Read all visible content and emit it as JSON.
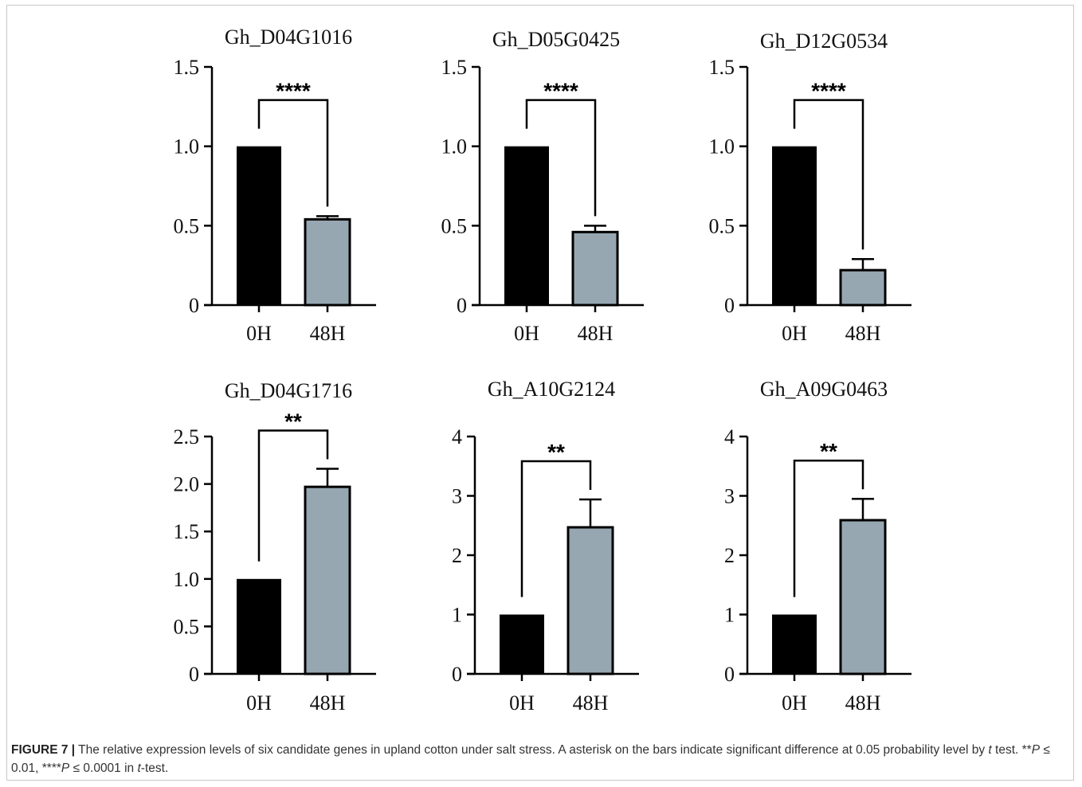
{
  "figure_label": "FIGURE 7 |",
  "caption_text": "The relative expression levels of six candidate genes in upland cotton under salt stress. A asterisk on the bars indicate significant difference at 0.05 probability level by",
  "caption_t": "t",
  "caption_after_t": "test. **",
  "caption_p1": "P",
  "caption_p1_tail": "≤ 0.01, ****",
  "caption_p2": "P",
  "caption_p2_tail": "≤ 0.0001 in",
  "caption_t2": "t",
  "caption_end": "-test.",
  "colors": {
    "bar_0h": "#000000",
    "bar_48h": "#97a7b1",
    "axis": "#000000"
  },
  "chart_data": [
    {
      "type": "bar",
      "title": "Gh_D04G1016",
      "categories": [
        "0H",
        "48H"
      ],
      "values": [
        1.0,
        0.54
      ],
      "error": [
        0,
        0.02
      ],
      "ylim": [
        0,
        1.5
      ],
      "yticks": [
        0,
        0.5,
        1.0,
        1.5
      ],
      "ytick_labels": [
        "0",
        "0.5",
        "1.0",
        "1.5"
      ],
      "significance": "****"
    },
    {
      "type": "bar",
      "title": "Gh_D05G0425",
      "categories": [
        "0H",
        "48H"
      ],
      "values": [
        1.0,
        0.46
      ],
      "error": [
        0,
        0.04
      ],
      "ylim": [
        0,
        1.5
      ],
      "yticks": [
        0,
        0.5,
        1.0,
        1.5
      ],
      "ytick_labels": [
        "0",
        "0.5",
        "1.0",
        "1.5"
      ],
      "significance": "****"
    },
    {
      "type": "bar",
      "title": "Gh_D12G0534",
      "categories": [
        "0H",
        "48H"
      ],
      "values": [
        1.0,
        0.22
      ],
      "error": [
        0,
        0.07
      ],
      "ylim": [
        0,
        1.5
      ],
      "yticks": [
        0,
        0.5,
        1.0,
        1.5
      ],
      "ytick_labels": [
        "0",
        "0.5",
        "1.0",
        "1.5"
      ],
      "significance": "****"
    },
    {
      "type": "bar",
      "title": "Gh_D04G1716",
      "categories": [
        "0H",
        "48H"
      ],
      "values": [
        1.0,
        1.97
      ],
      "error": [
        0,
        0.19
      ],
      "ylim": [
        0,
        2.5
      ],
      "yticks": [
        0,
        0.5,
        1.0,
        1.5,
        2.0,
        2.5
      ],
      "ytick_labels": [
        "0",
        "0.5",
        "1.0",
        "1.5",
        "2.0",
        "2.5"
      ],
      "significance": "**"
    },
    {
      "type": "bar",
      "title": "Gh_A10G2124",
      "categories": [
        "0H",
        "48H"
      ],
      "values": [
        1.0,
        2.47
      ],
      "error": [
        0,
        0.47
      ],
      "ylim": [
        0,
        4
      ],
      "yticks": [
        0,
        1,
        2,
        3,
        4
      ],
      "ytick_labels": [
        "0",
        "1",
        "2",
        "3",
        "4"
      ],
      "significance": "**"
    },
    {
      "type": "bar",
      "title": "Gh_A09G0463",
      "categories": [
        "0H",
        "48H"
      ],
      "values": [
        1.0,
        2.59
      ],
      "error": [
        0,
        0.36
      ],
      "ylim": [
        0,
        4
      ],
      "yticks": [
        0,
        1,
        2,
        3,
        4
      ],
      "ytick_labels": [
        "0",
        "1",
        "2",
        "3",
        "4"
      ],
      "significance": "**"
    }
  ]
}
